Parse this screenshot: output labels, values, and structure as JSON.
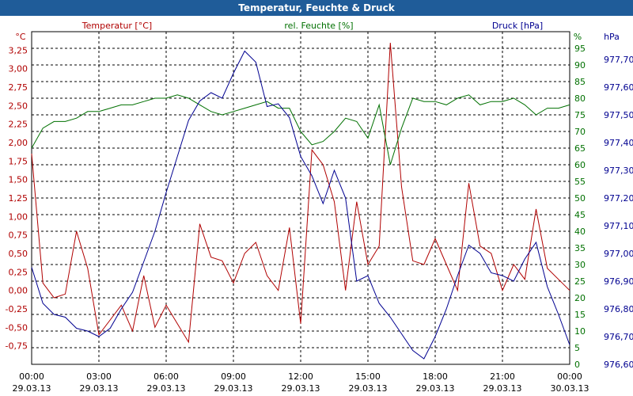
{
  "window": {
    "title": "Temperatur, Feuchte & Druck"
  },
  "chart_data": {
    "type": "line",
    "title": "Temperatur, Feuchte & Druck",
    "colors": {
      "temperature": "#b00000",
      "humidity": "#007000",
      "pressure": "#000090",
      "title_bar": "#1f5c99",
      "grid": "#000000"
    },
    "grid": true,
    "x_ticks": [
      {
        "time": "00:00",
        "date": "29.03.13"
      },
      {
        "time": "03:00",
        "date": "29.03.13"
      },
      {
        "time": "06:00",
        "date": "29.03.13"
      },
      {
        "time": "09:00",
        "date": "29.03.13"
      },
      {
        "time": "12:00",
        "date": "29.03.13"
      },
      {
        "time": "15:00",
        "date": "29.03.13"
      },
      {
        "time": "18:00",
        "date": "29.03.13"
      },
      {
        "time": "21:00",
        "date": "29.03.13"
      },
      {
        "time": "00:00",
        "date": "30.03.13"
      }
    ],
    "axes": {
      "temperature": {
        "label": "Temperatur [°C]",
        "unit": "°C",
        "range": [
          -1.0,
          3.5
        ],
        "ticks": [
          "-0,75",
          "-0,50",
          "-0,25",
          "0,00",
          "0,25",
          "0,50",
          "0,75",
          "1,00",
          "1,25",
          "1,50",
          "1,75",
          "2,00",
          "2,25",
          "2,50",
          "2,75",
          "3,00",
          "3,25"
        ]
      },
      "humidity": {
        "label": "rel. Feuchte [%]",
        "unit": "%",
        "range": [
          0,
          100
        ],
        "ticks": [
          "0",
          "5",
          "10",
          "15",
          "20",
          "25",
          "30",
          "35",
          "40",
          "45",
          "50",
          "55",
          "60",
          "65",
          "70",
          "75",
          "80",
          "85",
          "90",
          "95"
        ]
      },
      "pressure": {
        "label": "Druck [hPa]",
        "unit": "hPa",
        "range": [
          976.6,
          977.8
        ],
        "ticks": [
          "976,60",
          "976,70",
          "976,80",
          "976,90",
          "977,00",
          "977,10",
          "977,20",
          "977,30",
          "977,40",
          "977,50",
          "977,60",
          "977,70"
        ]
      }
    },
    "series": [
      {
        "name": "Temperatur [°C]",
        "axis": "temperature",
        "x_hours": [
          0,
          0.5,
          1,
          1.5,
          2,
          2.5,
          3,
          3.5,
          4,
          4.5,
          5,
          5.5,
          6,
          6.5,
          7,
          7.5,
          8,
          8.5,
          9,
          9.5,
          10,
          10.5,
          11,
          11.5,
          12,
          12.5,
          13,
          13.5,
          14,
          14.5,
          15,
          15.5,
          16,
          16.5,
          17,
          17.5,
          18,
          18.5,
          19,
          19.5,
          20,
          20.5,
          21,
          21.5,
          22,
          22.5,
          23,
          23.5,
          24
        ],
        "values": [
          1.85,
          0.1,
          -0.1,
          -0.05,
          0.8,
          0.3,
          -0.6,
          -0.4,
          -0.2,
          -0.55,
          0.2,
          -0.5,
          -0.2,
          -0.45,
          -0.7,
          0.9,
          0.45,
          0.4,
          0.1,
          0.5,
          0.65,
          0.2,
          0.0,
          0.85,
          -0.45,
          1.9,
          1.7,
          1.2,
          0.0,
          1.2,
          0.35,
          0.6,
          3.35,
          1.4,
          0.4,
          0.35,
          0.7,
          0.35,
          0.0,
          1.45,
          0.6,
          0.5,
          0.0,
          0.35,
          0.15,
          1.1,
          0.3,
          0.15,
          0.0
        ]
      },
      {
        "name": "rel. Feuchte [%]",
        "axis": "humidity",
        "x_hours": [
          0,
          0.5,
          1,
          1.5,
          2,
          2.5,
          3,
          3.5,
          4,
          4.5,
          5,
          5.5,
          6,
          6.5,
          7,
          7.5,
          8,
          8.5,
          9,
          9.5,
          10,
          10.5,
          11,
          11.5,
          12,
          12.5,
          13,
          13.5,
          14,
          14.5,
          15,
          15.5,
          16,
          16.5,
          17,
          17.5,
          18,
          18.5,
          19,
          19.5,
          20,
          20.5,
          21,
          21.5,
          22,
          22.5,
          23,
          23.5,
          24
        ],
        "values": [
          65,
          71,
          73,
          73,
          74,
          76,
          76,
          77,
          78,
          78,
          79,
          80,
          80,
          81,
          80,
          78,
          76,
          75,
          76,
          77,
          78,
          79,
          77,
          77,
          70,
          66,
          67,
          70,
          74,
          73,
          68,
          78,
          60,
          71,
          80,
          79,
          79,
          78,
          80,
          81,
          78,
          79,
          79,
          80,
          78,
          75,
          77,
          77,
          78
        ]
      },
      {
        "name": "Druck [hPa]",
        "axis": "pressure",
        "x_hours": [
          0,
          0.5,
          1,
          1.5,
          2,
          2.5,
          3,
          3.5,
          4,
          4.5,
          5,
          5.5,
          6,
          6.5,
          7,
          7.5,
          8,
          8.5,
          9,
          9.5,
          10,
          10.5,
          11,
          11.5,
          12,
          12.5,
          13,
          13.5,
          14,
          14.5,
          15,
          15.5,
          16,
          16.5,
          17,
          17.5,
          18,
          18.5,
          19,
          19.5,
          20,
          20.5,
          21,
          21.5,
          22,
          22.5,
          23,
          23.5,
          24
        ],
        "values": [
          976.95,
          976.82,
          976.78,
          976.77,
          976.73,
          976.72,
          976.7,
          976.73,
          976.8,
          976.86,
          976.97,
          977.08,
          977.22,
          977.35,
          977.48,
          977.55,
          977.58,
          977.56,
          977.65,
          977.73,
          977.69,
          977.53,
          977.54,
          977.49,
          977.35,
          977.28,
          977.18,
          977.3,
          977.2,
          976.9,
          976.92,
          976.82,
          976.77,
          976.71,
          976.65,
          976.62,
          976.7,
          976.8,
          976.92,
          977.03,
          977.0,
          976.93,
          976.92,
          976.9,
          976.98,
          977.04,
          976.88,
          976.78,
          976.67
        ]
      }
    ]
  }
}
